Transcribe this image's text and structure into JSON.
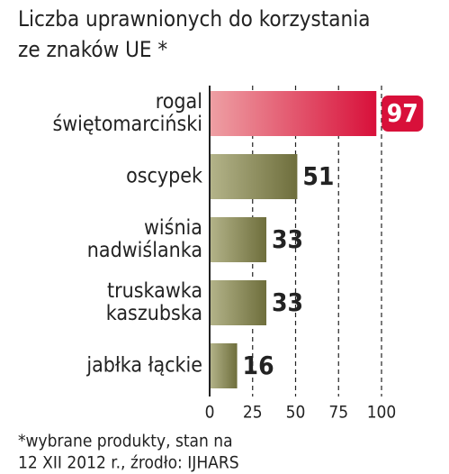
{
  "chart_data": {
    "type": "barh",
    "title": [
      "Liczba uprawnionych do korzystania",
      "ze znaków UE *"
    ],
    "categories": [
      [
        "rogal",
        "świętomarciński"
      ],
      [
        "oscypek"
      ],
      [
        "wiśnia",
        "nadwiślanka"
      ],
      [
        "truskawka",
        "kaszubska"
      ],
      [
        "jabłka łąckie"
      ]
    ],
    "values": [
      97,
      51,
      33,
      33,
      16
    ],
    "colors": [
      [
        "#eea0a4",
        "#d8103a"
      ],
      [
        "#b4b48a",
        "#6e6e3c"
      ],
      [
        "#b4b48a",
        "#6e6e3c"
      ],
      [
        "#b4b48a",
        "#6e6e3c"
      ],
      [
        "#b4b48a",
        "#6e6e3c"
      ]
    ],
    "highlight": 0,
    "xlim": [
      0,
      100
    ],
    "xticks": [
      0,
      25,
      50,
      75,
      100
    ],
    "grid": true,
    "footnote": [
      "*wybrane produkty, stan na",
      "12 XII 2012 r., źrodło: IJHARS"
    ]
  }
}
